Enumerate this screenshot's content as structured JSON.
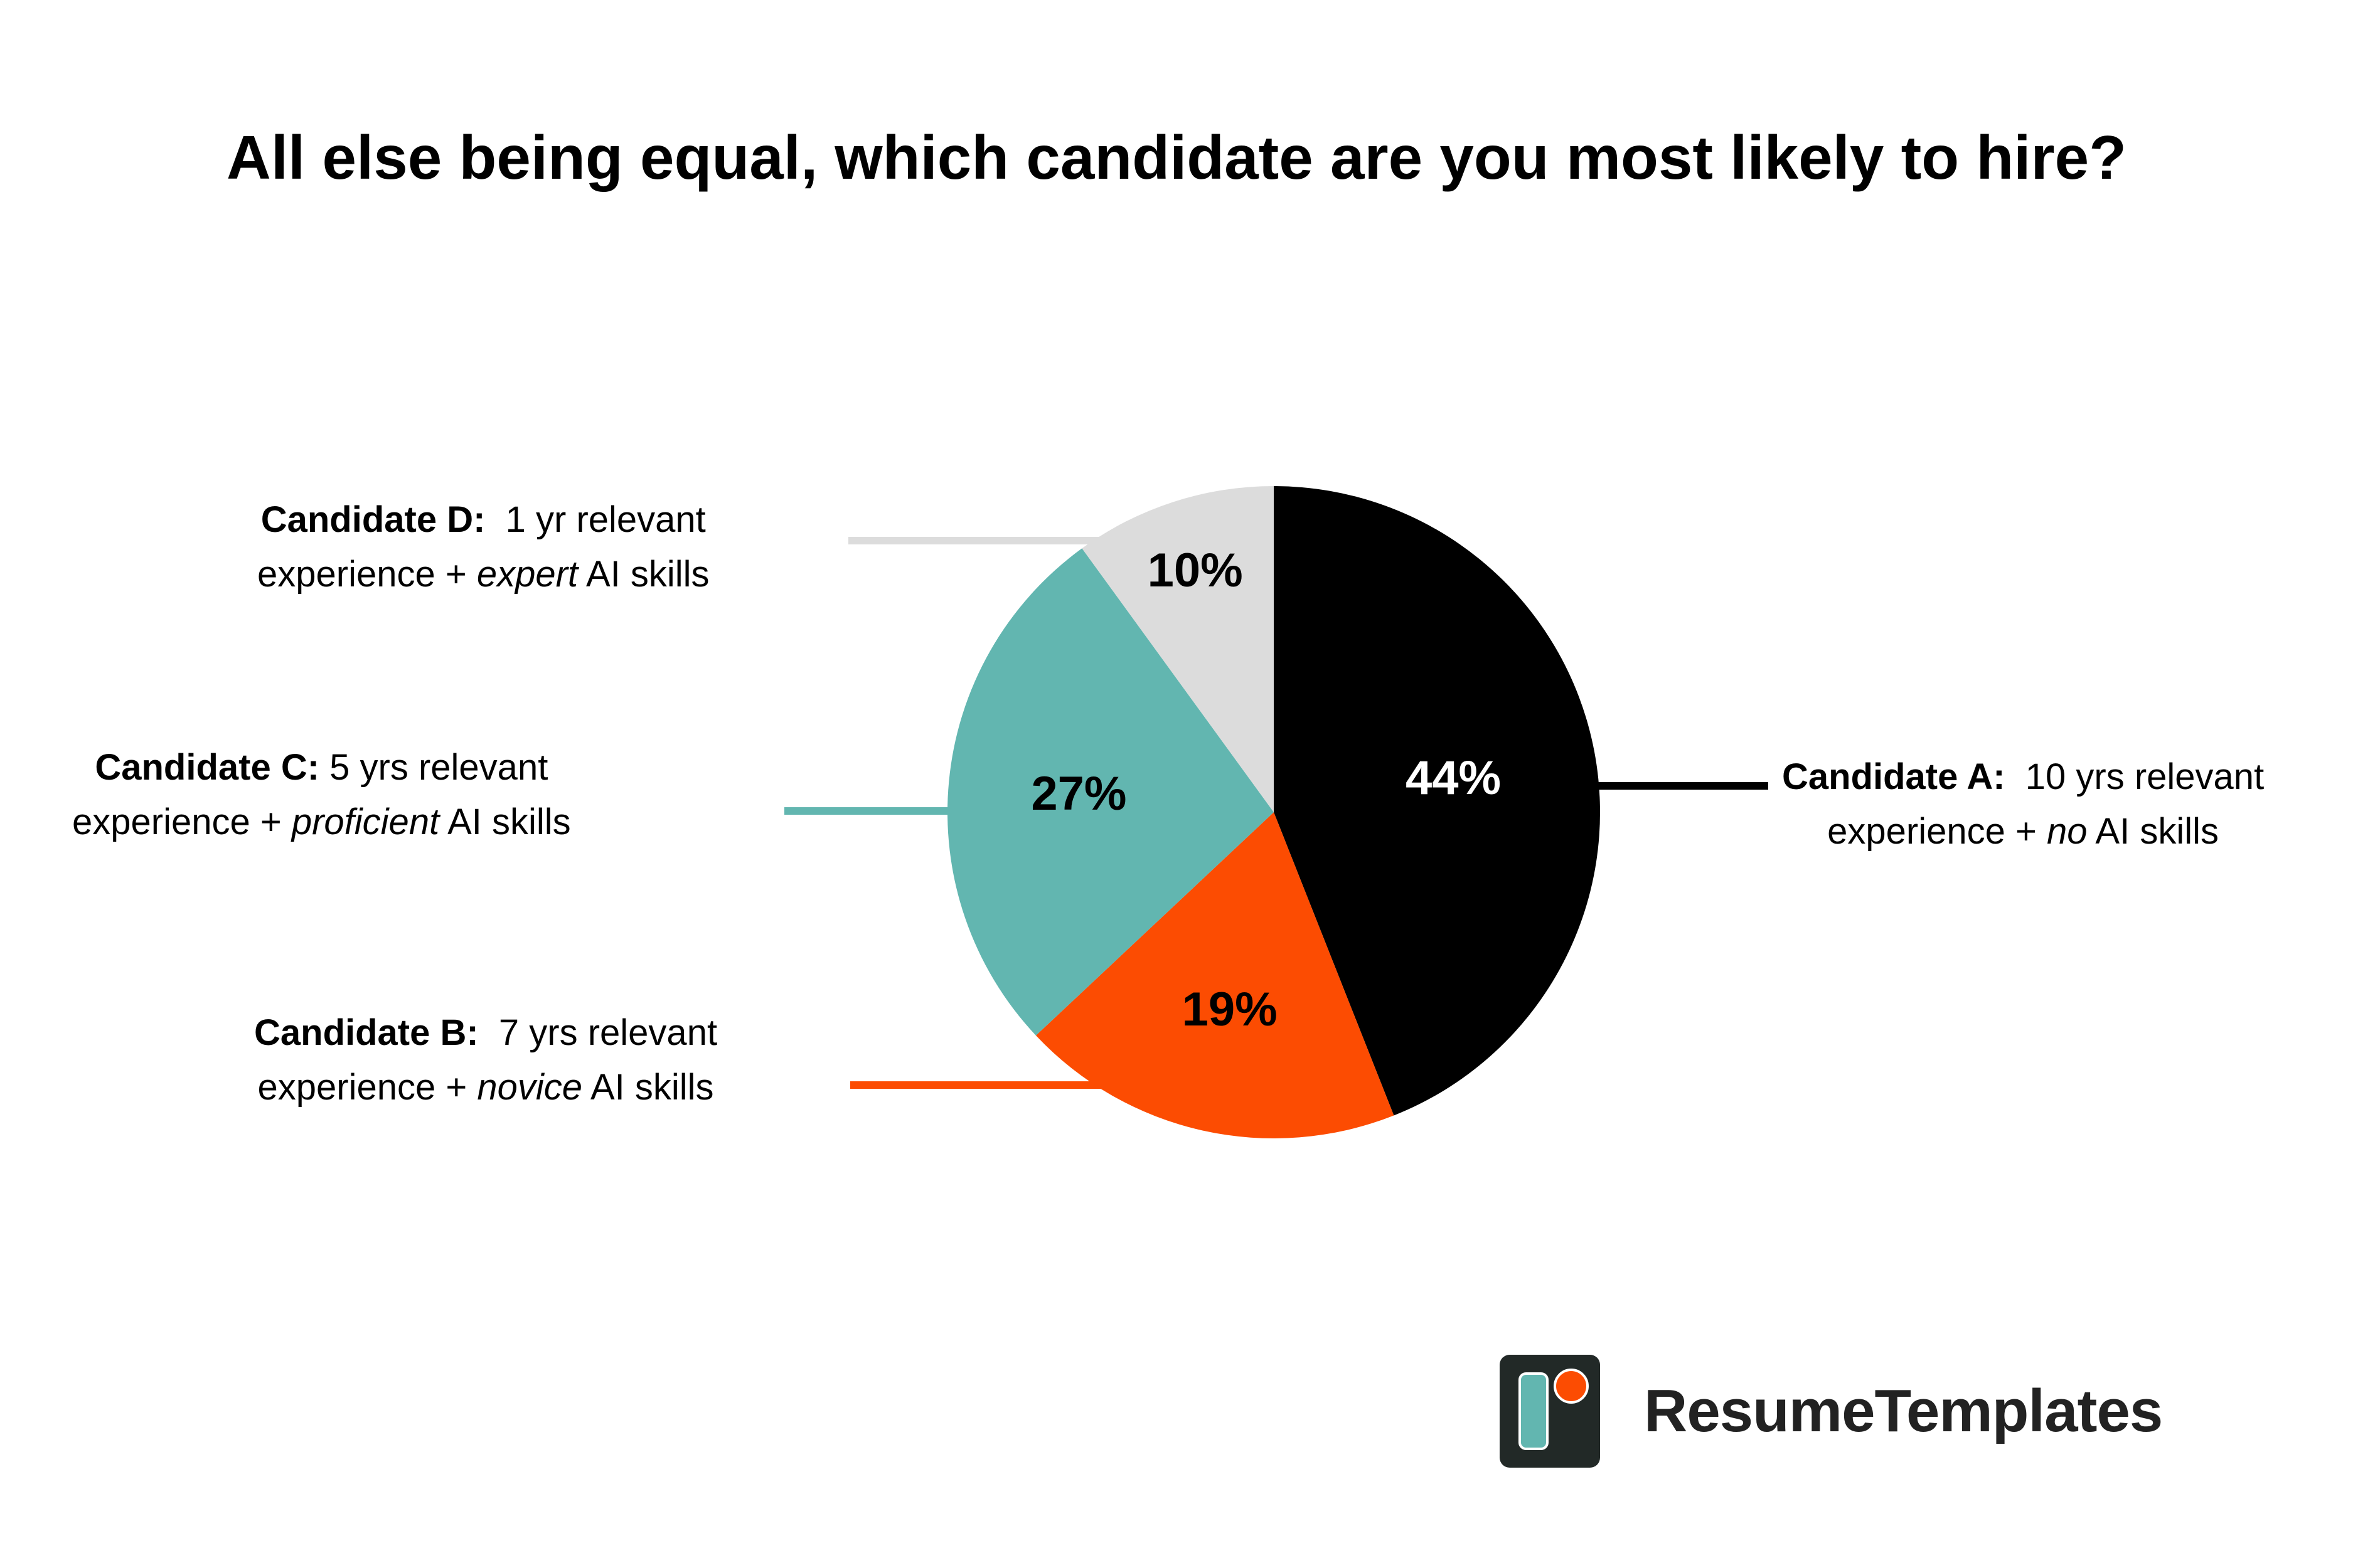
{
  "chart_data": {
    "type": "pie",
    "title": "All else being equal, which candidate are you most likely to hire?",
    "slices": [
      {
        "name": "Candidate A:",
        "desc_pre": "10 yrs relevant",
        "desc_line2_pre": "experience + ",
        "desc_em": "no",
        "desc_post": " AI skills",
        "value": 44,
        "label": "44%",
        "color": "#000000",
        "label_color": "#ffffff"
      },
      {
        "name": "Candidate B:",
        "desc_pre": "7 yrs relevant",
        "desc_line2_pre": "experience + ",
        "desc_em": "novice",
        "desc_post": " AI skills",
        "value": 19,
        "label": "19%",
        "color": "#fc4c02",
        "label_color": "#000000"
      },
      {
        "name": "Candidate C:",
        "desc_pre": "5 yrs relevant",
        "desc_line2_pre": "experience + ",
        "desc_em": "proficient",
        "desc_post": " AI skills",
        "value": 27,
        "label": "27%",
        "color": "#62b6b0",
        "label_color": "#000000"
      },
      {
        "name": "Candidate D:",
        "desc_pre": "1 yr relevant",
        "desc_line2_pre": "experience + ",
        "desc_em": "expert",
        "desc_post": " AI skills",
        "value": 10,
        "label": "10%",
        "color": "#dcdcdc",
        "label_color": "#000000"
      }
    ]
  },
  "brand": {
    "name": "ResumeTemplates",
    "logo_icon": "resume-templates-logo-icon",
    "colors": {
      "tile": "#222927",
      "bar": "#62b6b0",
      "dot": "#fc4c02"
    }
  }
}
